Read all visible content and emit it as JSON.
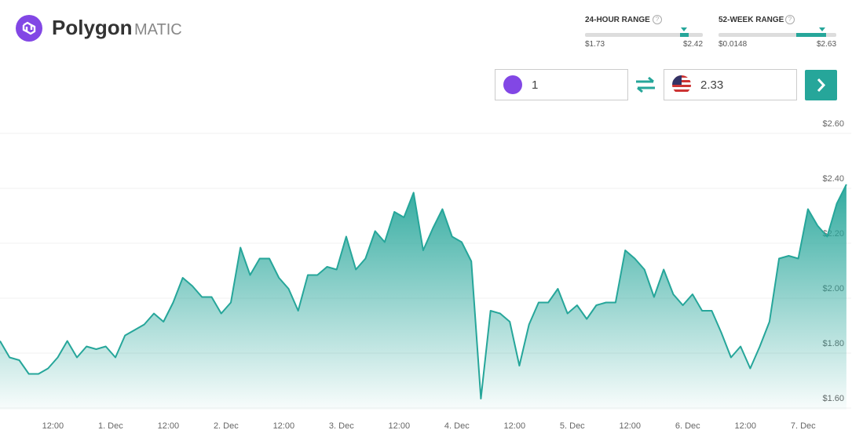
{
  "header": {
    "name": "Polygon",
    "symbol": "MATIC"
  },
  "ranges": [
    {
      "label": "24-HOUR RANGE",
      "low": "$1.73",
      "high": "$2.42"
    },
    {
      "label": "52-WEEK RANGE",
      "low": "$0.0148",
      "high": "$2.63"
    }
  ],
  "converter": {
    "amount": "1",
    "result": "2.33"
  },
  "chart_data": {
    "type": "area",
    "series": [
      {
        "color": "#26a69a",
        "x": [
          0,
          2,
          4,
          6,
          8,
          10,
          12,
          14,
          16,
          18,
          20,
          22,
          24,
          26,
          28,
          30,
          32,
          34,
          36,
          38,
          40,
          42,
          44,
          46,
          48,
          50,
          52,
          54,
          56,
          58,
          60,
          62,
          64,
          66,
          68,
          70,
          72,
          74,
          76,
          78,
          80,
          82,
          84,
          86,
          88,
          90,
          92,
          94,
          96,
          98,
          100,
          102,
          104,
          106,
          108,
          110,
          112,
          114,
          116,
          118,
          120,
          122,
          124,
          126,
          128,
          130,
          132,
          134,
          136,
          138,
          140,
          142,
          144,
          146,
          148,
          150,
          152,
          154,
          156,
          158,
          160,
          162,
          164,
          166,
          168,
          170,
          172,
          174,
          176
        ],
        "values": [
          1.81,
          1.75,
          1.74,
          1.69,
          1.69,
          1.71,
          1.75,
          1.81,
          1.75,
          1.79,
          1.78,
          1.79,
          1.75,
          1.83,
          1.85,
          1.87,
          1.91,
          1.88,
          1.95,
          2.04,
          2.01,
          1.97,
          1.97,
          1.91,
          1.95,
          2.15,
          2.05,
          2.11,
          2.11,
          2.04,
          2.0,
          1.92,
          2.05,
          2.05,
          2.08,
          2.07,
          2.19,
          2.07,
          2.11,
          2.21,
          2.17,
          2.28,
          2.26,
          2.35,
          2.14,
          2.22,
          2.29,
          2.19,
          2.17,
          2.1,
          1.6,
          1.92,
          1.91,
          1.88,
          1.72,
          1.87,
          1.95,
          1.95,
          2.0,
          1.91,
          1.94,
          1.89,
          1.94,
          1.95,
          1.95,
          2.14,
          2.11,
          2.07,
          1.97,
          2.07,
          1.98,
          1.94,
          1.98,
          1.92,
          1.92,
          1.84,
          1.75,
          1.79,
          1.71,
          1.79,
          1.88,
          2.11,
          2.12,
          2.11,
          2.29,
          2.23,
          2.19,
          2.31,
          2.38
        ]
      }
    ],
    "xlim": [
      0,
      177
    ],
    "xticks": [
      {
        "value": 11,
        "label": "12:00"
      },
      {
        "value": 23,
        "label": "1. Dec"
      },
      {
        "value": 35,
        "label": "12:00"
      },
      {
        "value": 47,
        "label": "2. Dec"
      },
      {
        "value": 59,
        "label": "12:00"
      },
      {
        "value": 71,
        "label": "3. Dec"
      },
      {
        "value": 83,
        "label": "12:00"
      },
      {
        "value": 95,
        "label": "4. Dec"
      },
      {
        "value": 107,
        "label": "12:00"
      },
      {
        "value": 119,
        "label": "5. Dec"
      },
      {
        "value": 131,
        "label": "12:00"
      },
      {
        "value": 143,
        "label": "6. Dec"
      },
      {
        "value": 155,
        "label": "12:00"
      },
      {
        "value": 167,
        "label": "7. Dec"
      }
    ],
    "ylim": [
      1.56,
      2.6
    ],
    "yticks": [
      {
        "value": 1.6,
        "label": "$1.60"
      },
      {
        "value": 1.8,
        "label": "$1.80"
      },
      {
        "value": 2.0,
        "label": "$2.00"
      },
      {
        "value": 2.2,
        "label": "$2.20"
      },
      {
        "value": 2.4,
        "label": "$2.40"
      },
      {
        "value": 2.6,
        "label": "$2.60"
      }
    ],
    "grid": true
  }
}
